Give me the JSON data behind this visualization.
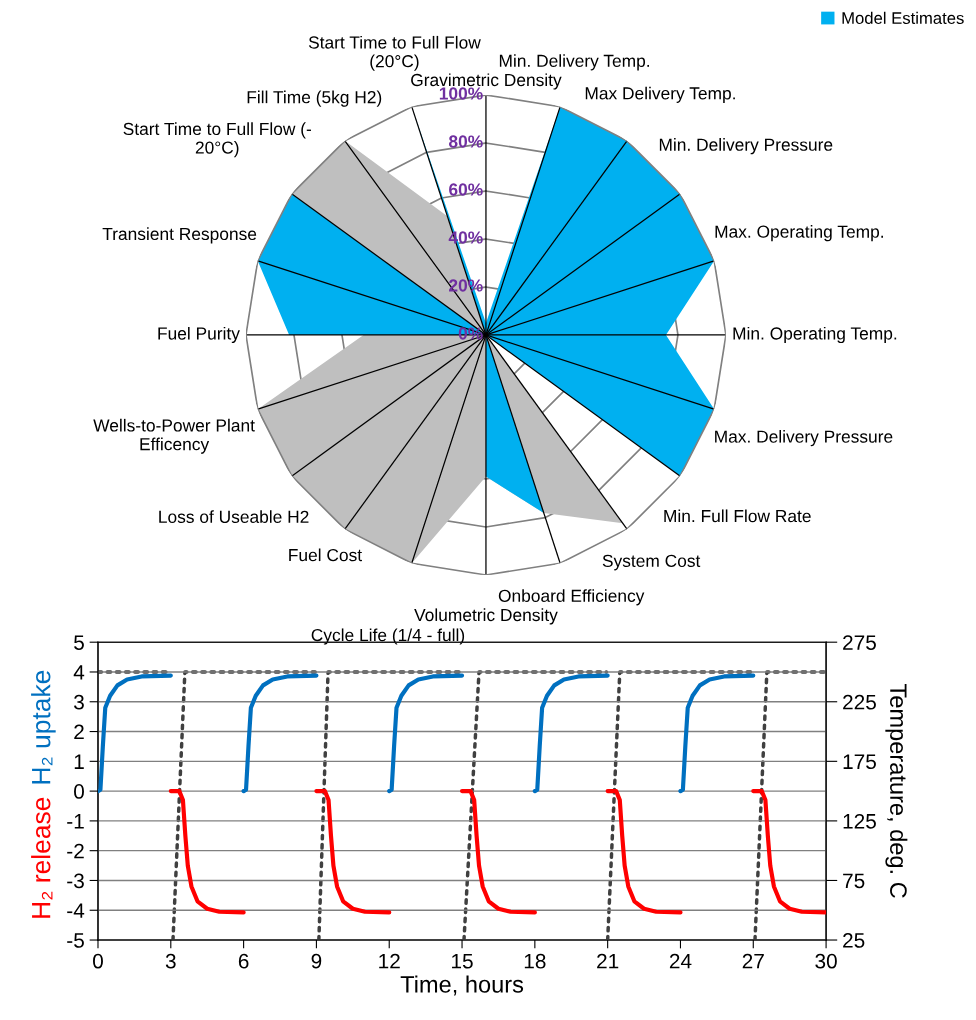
{
  "chart_data": [
    {
      "type": "radar",
      "categories": [
        "Gravimetric Density",
        "Min. Delivery Temp.",
        "Max Delivery Temp.",
        "Min. Delivery Pressure",
        "Max. Operating Temp.",
        "Min. Operating Temp.",
        "Max. Delivery Pressure",
        "Min. Full Flow Rate",
        "System Cost",
        "Onboard Efficiency",
        "Volumetric Density",
        "Cycle Life (1/4 - full)",
        "Fuel Cost",
        "Loss of Useable H2",
        "Wells-to-Power Plant\nEfficency",
        "Fuel Purity",
        "Transient Response",
        "Start Time to Full Flow (-\n20°C)",
        "Fill Time (5kg H2)",
        "Start Time to Full Flow\n(20°C)"
      ],
      "series": [
        {
          "color": "#bfbfbf",
          "values": [
            0,
            0,
            0,
            0,
            0,
            0,
            0,
            0,
            97,
            78,
            59,
            100,
            100,
            100,
            100,
            51,
            0,
            100,
            100,
            52
          ]
        },
        {
          "name": "Model Estimates",
          "color": "#00b0f0",
          "values": [
            5,
            100,
            100,
            100,
            100,
            75,
            100,
            100,
            0,
            78,
            59,
            0,
            0,
            0,
            0,
            82,
            100,
            100,
            0,
            100
          ]
        }
      ],
      "ylim": [
        0,
        100
      ],
      "yticks": [
        {
          "value": 0,
          "label": "0%"
        },
        {
          "value": 20,
          "label": "20%"
        },
        {
          "value": 40,
          "label": "40%"
        },
        {
          "value": 60,
          "label": "60%"
        },
        {
          "value": 80,
          "label": "80%"
        },
        {
          "value": 100,
          "label": "100%"
        }
      ],
      "grid": true,
      "legend": "top right"
    },
    {
      "type": "line",
      "xlabel": "Time, hours",
      "y2label": "Temperature, deg. C",
      "xlim": [
        0,
        30
      ],
      "xticks": [
        0,
        3,
        6,
        9,
        12,
        15,
        18,
        21,
        24,
        27,
        30
      ],
      "ylim": [
        -5,
        5
      ],
      "yticks": [
        -5,
        -4,
        -3,
        -2,
        -1,
        0,
        1,
        2,
        3,
        4,
        5
      ],
      "y2lim": [
        25,
        275
      ],
      "y2ticks": [
        25,
        75,
        125,
        175,
        225,
        275
      ],
      "grid": "y",
      "series": [
        {
          "name": "H₂ uptake",
          "color": "#0070c0",
          "line_style": "solid",
          "x": [
            0,
            0.1,
            0.2,
            0.3,
            0.5,
            0.8,
            1.2,
            1.8,
            3.0,
            null,
            6,
            6.1,
            6.2,
            6.3,
            6.5,
            6.8,
            7.2,
            7.8,
            9.0,
            null,
            12,
            12.1,
            12.2,
            12.3,
            12.5,
            12.8,
            13.2,
            13.8,
            15.0,
            null,
            18,
            18.1,
            18.2,
            18.3,
            18.5,
            18.8,
            19.2,
            19.8,
            21.0,
            null,
            24,
            24.1,
            24.2,
            24.3,
            24.5,
            24.8,
            25.2,
            25.8,
            27.0
          ],
          "values": [
            0,
            0.05,
            1.5,
            2.8,
            3.2,
            3.55,
            3.75,
            3.85,
            3.88,
            null,
            0,
            0.05,
            1.5,
            2.8,
            3.2,
            3.55,
            3.75,
            3.85,
            3.88,
            null,
            0,
            0.05,
            1.5,
            2.8,
            3.2,
            3.55,
            3.75,
            3.85,
            3.88,
            null,
            0,
            0.05,
            1.5,
            2.8,
            3.2,
            3.55,
            3.75,
            3.85,
            3.88,
            null,
            0,
            0.05,
            1.5,
            2.8,
            3.2,
            3.55,
            3.75,
            3.85,
            3.88
          ]
        },
        {
          "name": "H₂ release",
          "color": "#ff0000",
          "line_style": "solid",
          "x": [
            3,
            3.35,
            3.5,
            3.6,
            3.7,
            3.85,
            4.1,
            4.5,
            5.0,
            6.0,
            null,
            9,
            9.35,
            9.5,
            9.6,
            9.7,
            9.85,
            10.1,
            10.5,
            11.0,
            12.0,
            null,
            15,
            15.35,
            15.5,
            15.6,
            15.7,
            15.85,
            16.1,
            16.5,
            17.0,
            18.0,
            null,
            21,
            21.35,
            21.5,
            21.6,
            21.7,
            21.85,
            22.1,
            22.5,
            23.0,
            24.0,
            null,
            27,
            27.35,
            27.5,
            27.6,
            27.7,
            27.85,
            28.1,
            28.5,
            29.0,
            30.0
          ],
          "values": [
            0,
            0,
            -0.3,
            -1.5,
            -2.5,
            -3.2,
            -3.7,
            -3.95,
            -4.05,
            -4.07,
            null,
            0,
            0,
            -0.3,
            -1.5,
            -2.5,
            -3.2,
            -3.7,
            -3.95,
            -4.05,
            -4.07,
            null,
            0,
            0,
            -0.3,
            -1.5,
            -2.5,
            -3.2,
            -3.7,
            -3.95,
            -4.05,
            -4.07,
            null,
            0,
            0,
            -0.3,
            -1.5,
            -2.5,
            -3.2,
            -3.7,
            -3.95,
            -4.05,
            -4.07,
            null,
            0,
            0,
            -0.3,
            -1.5,
            -2.5,
            -3.2,
            -3.7,
            -3.95,
            -4.05,
            -4.07
          ]
        },
        {
          "color": "#404040",
          "axis": "y2",
          "line_style": "dotted",
          "x": [
            0,
            2.95,
            null,
            3.09,
            3.58,
            8.95,
            null,
            9.1,
            9.48,
            14.95,
            null,
            15.08,
            15.7,
            20.95,
            null,
            21.0,
            21.5,
            26.95,
            null,
            27.07,
            27.56,
            30
          ],
          "values": [
            250,
            250,
            null,
            25,
            250,
            250,
            null,
            25,
            250,
            250,
            null,
            25,
            250,
            250,
            null,
            25,
            250,
            250,
            null,
            25,
            250,
            250
          ]
        }
      ]
    }
  ]
}
